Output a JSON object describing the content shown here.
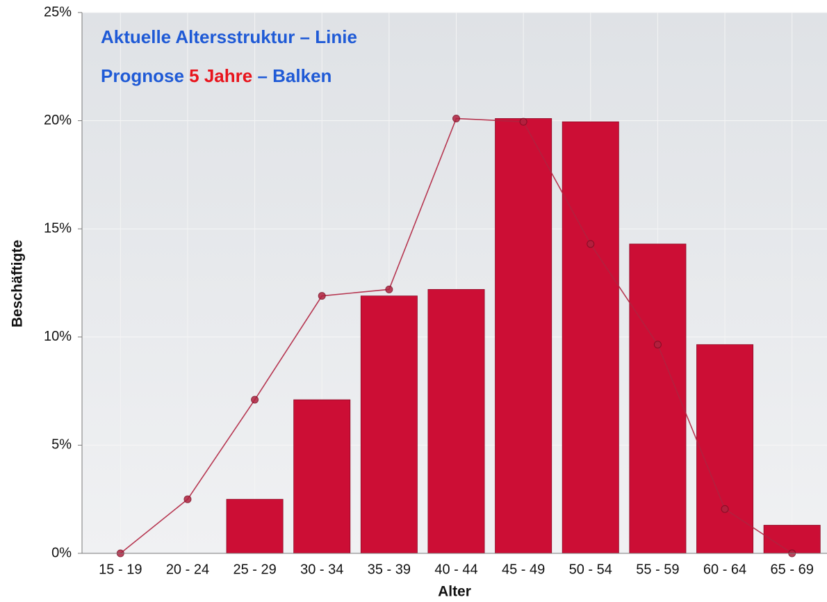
{
  "chart_data": {
    "type": "bar+line",
    "title": "Aktuelle Altersstruktur – Linie",
    "subtitle": [
      "Prognose",
      "5 Jahre",
      "– Balken"
    ],
    "x_label": "Alter",
    "y_label": "Beschäftigte",
    "categories": [
      "15 - 19",
      "20 - 24",
      "25 - 29",
      "30 - 34",
      "35 - 39",
      "40 - 44",
      "45 - 49",
      "50 - 54",
      "55 - 59",
      "60 - 64",
      "65 - 69"
    ],
    "series": [
      {
        "type": "bar",
        "color": "#cc0e35",
        "values": [
          0,
          0,
          2.5,
          7.1,
          11.9,
          12.2,
          20.1,
          19.95,
          14.3,
          9.65,
          1.3
        ]
      },
      {
        "type": "line",
        "color": "#b0223f",
        "values": [
          0,
          2.5,
          7.1,
          11.9,
          12.2,
          20.1,
          19.95,
          14.3,
          9.65,
          2.05,
          0
        ]
      }
    ],
    "ylim": [
      0,
      25
    ],
    "yticks": [
      {
        "value": 0,
        "label": "0%"
      },
      {
        "value": 5,
        "label": "5%"
      },
      {
        "value": 10,
        "label": "10%"
      },
      {
        "value": 15,
        "label": "15%"
      },
      {
        "value": 20,
        "label": "20%"
      },
      {
        "value": 25,
        "label": "25%"
      }
    ],
    "grid": true
  }
}
